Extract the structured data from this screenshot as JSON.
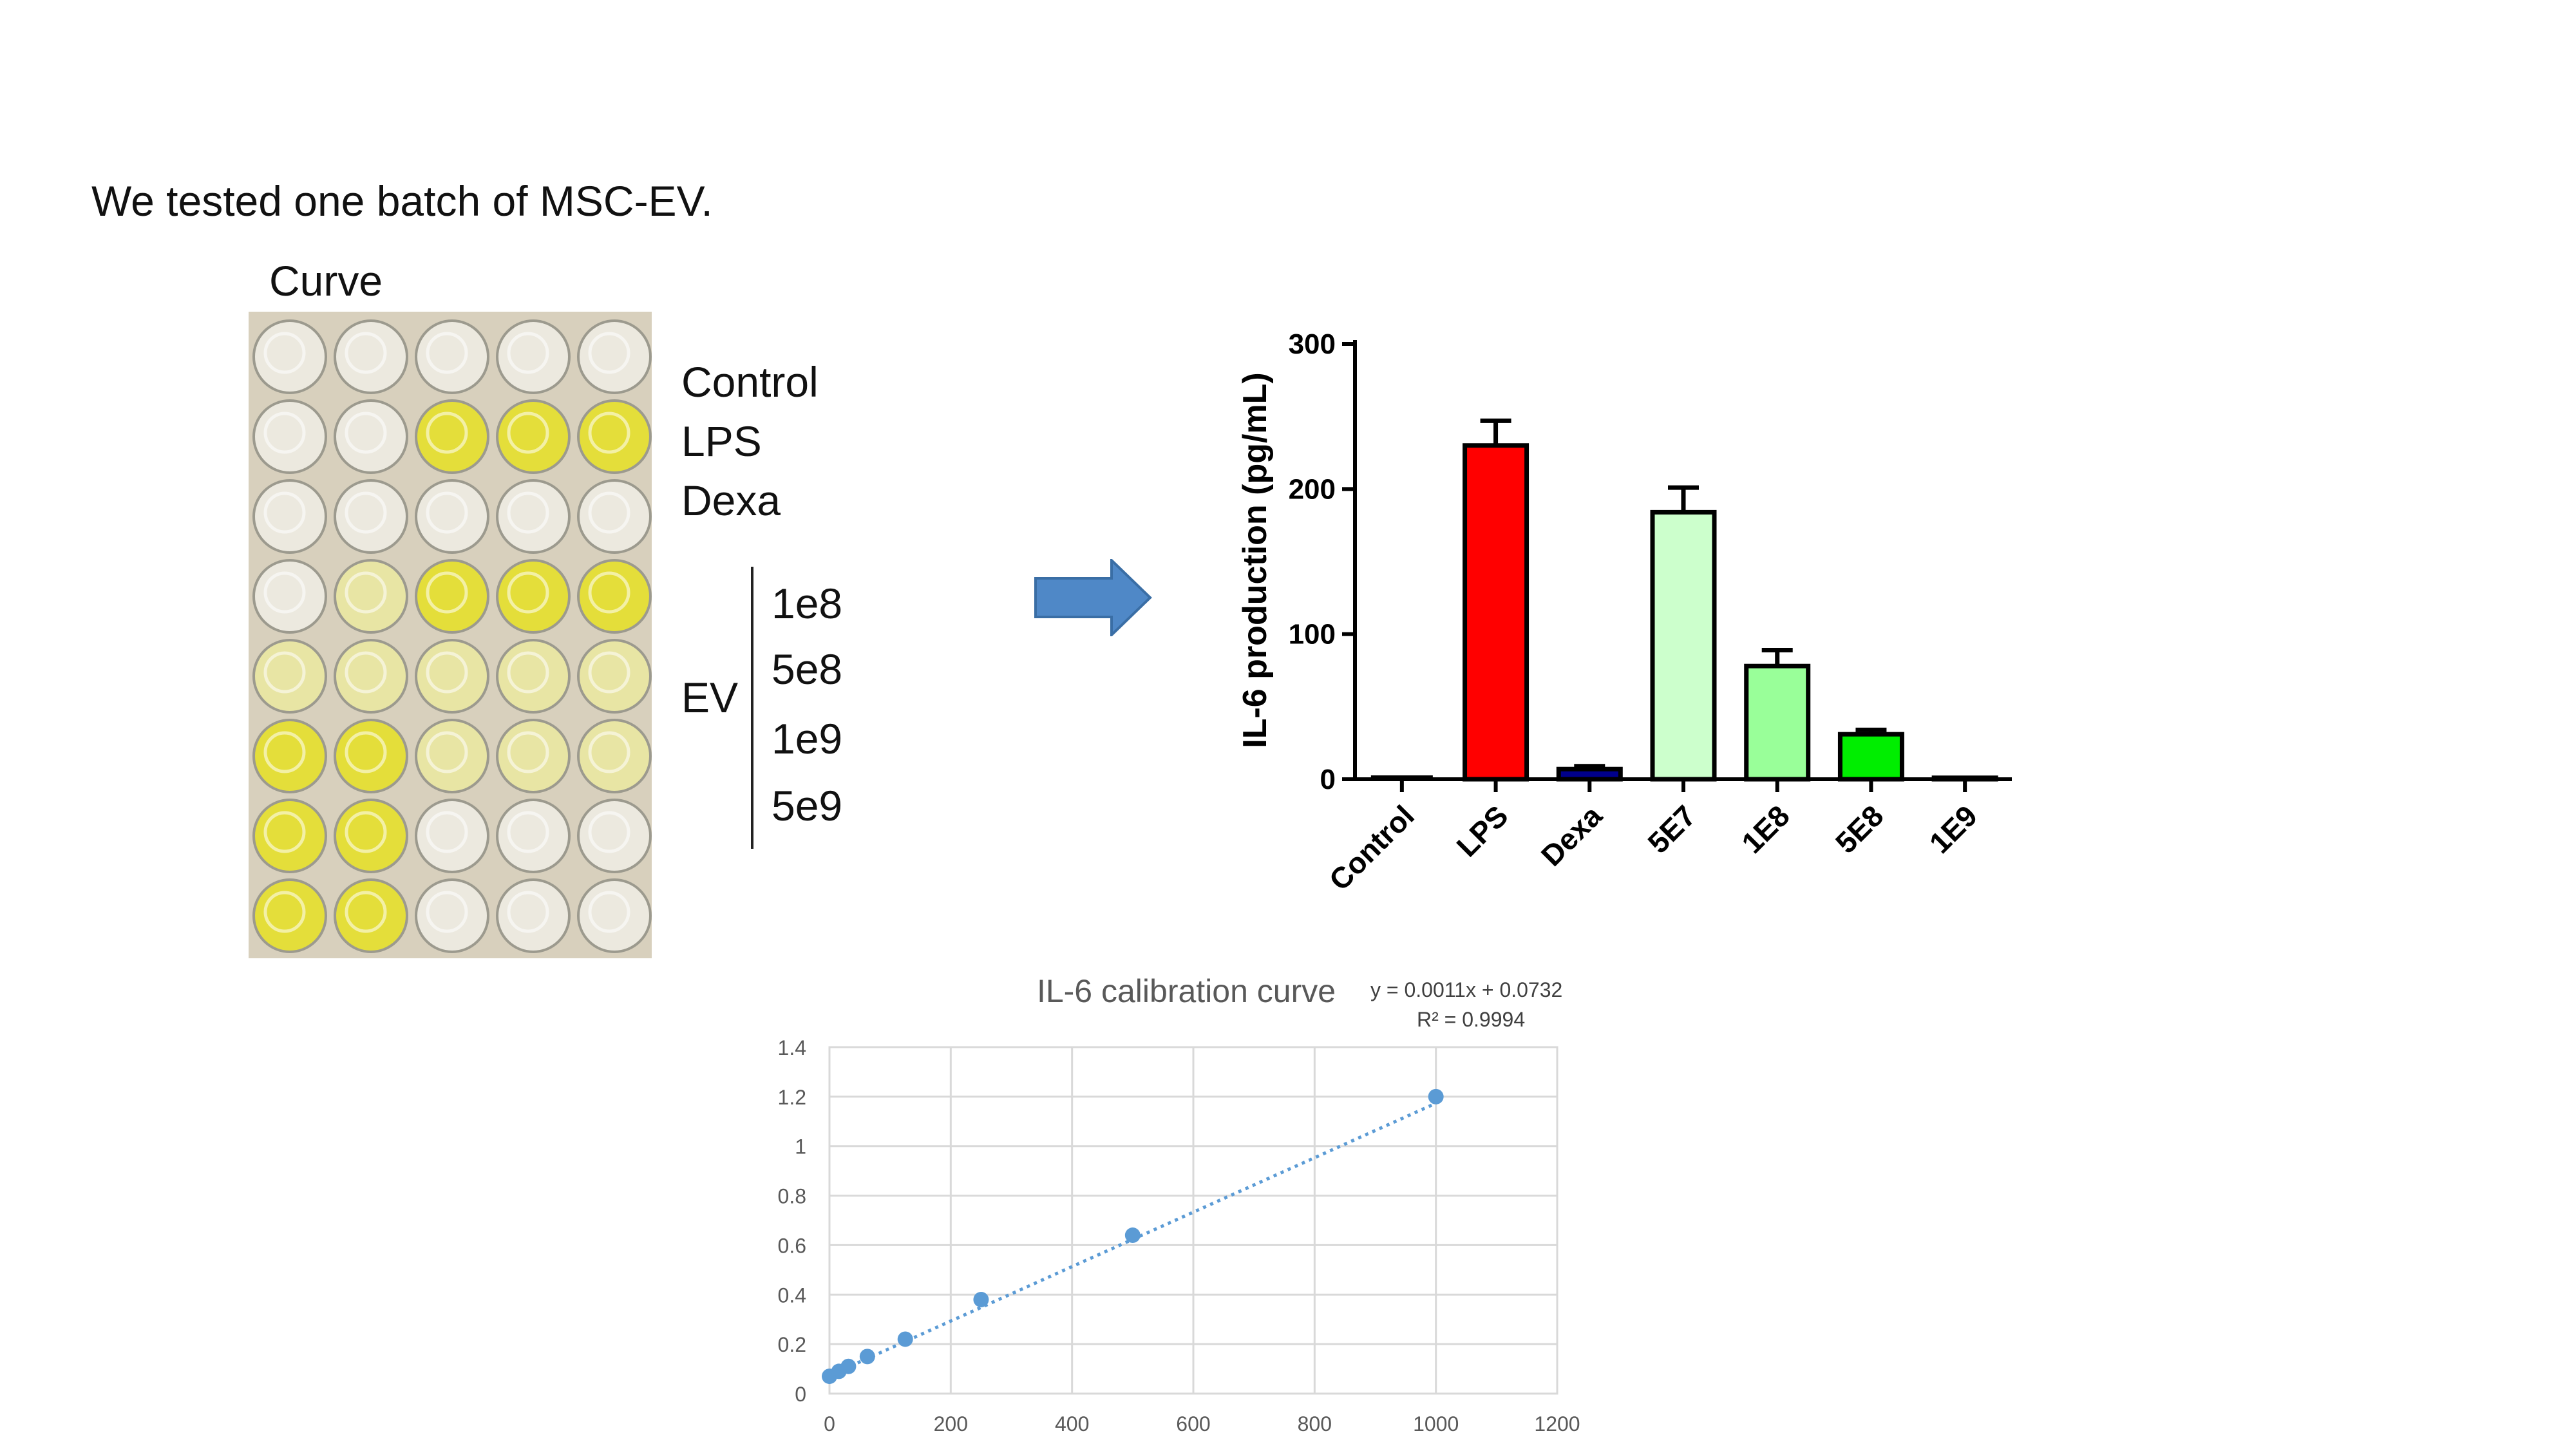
{
  "slide": {
    "title": "We tested one batch of MSC-EV.",
    "curve_label": "Curve"
  },
  "plate_labels": {
    "control": "Control",
    "lps": "LPS",
    "dexa": "Dexa",
    "ev": "EV",
    "doses": [
      "1e8",
      "5e8",
      "1e9",
      "5e9"
    ]
  },
  "plate_wells": [
    [
      "clear",
      "clear",
      "clear",
      "clear",
      "clear"
    ],
    [
      "clear",
      "clear",
      "yellow",
      "yellow",
      "yellow"
    ],
    [
      "clear",
      "clear",
      "clear",
      "clear",
      "clear"
    ],
    [
      "clear",
      "light",
      "yellow",
      "yellow",
      "yellow"
    ],
    [
      "light",
      "light",
      "light",
      "light",
      "light"
    ],
    [
      "yellow",
      "yellow",
      "light",
      "light",
      "light"
    ],
    [
      "yellow",
      "yellow",
      "clear",
      "clear",
      "clear"
    ],
    [
      "yellow",
      "yellow",
      "clear",
      "clear",
      "clear"
    ]
  ],
  "colors": {
    "well_clear": "#ece9df",
    "well_light": "#e8e5a4",
    "well_yellow": "#e4de3a",
    "plate_bg": "#d8d0bd",
    "arrow_fill": "#4f88c7",
    "arrow_stroke": "#3a6ea5",
    "curve_point": "#5b9bd5",
    "gridline": "#d9d9d9"
  },
  "chart_data": [
    {
      "type": "bar",
      "ylabel": "IL-6 production (pg/mL)",
      "categories": [
        "Control",
        "LPS",
        "Dexa",
        "5E7",
        "1E8",
        "5E8",
        "1E9"
      ],
      "values": [
        0,
        230,
        7,
        184,
        78,
        31,
        1
      ],
      "errors": [
        0,
        17,
        2,
        17,
        11,
        3,
        0
      ],
      "colors": [
        "#ffffff",
        "#ff0000",
        "#00008b",
        "#ccffcc",
        "#99ff99",
        "#00ee00",
        "#ffffff"
      ],
      "yticks": [
        "0",
        "100",
        "200",
        "300"
      ],
      "ylim": [
        0,
        300
      ]
    },
    {
      "type": "scatter",
      "title": "IL-6 calibration curve",
      "equation": "y = 0.0011x + 0.0732",
      "r2": "R² = 0.9994",
      "x": [
        0,
        15.6,
        31.25,
        62.5,
        125,
        250,
        500,
        1000
      ],
      "y": [
        0.07,
        0.09,
        0.11,
        0.15,
        0.22,
        0.38,
        0.64,
        1.2
      ],
      "xticks": [
        "0",
        "200",
        "400",
        "600",
        "800",
        "1000",
        "1200"
      ],
      "yticks": [
        "0",
        "0.2",
        "0.4",
        "0.6",
        "0.8",
        "1",
        "1.2",
        "1.4"
      ],
      "xlim": [
        0,
        1200
      ],
      "ylim": [
        0,
        1.4
      ],
      "trendline": {
        "slope": 0.0011,
        "intercept": 0.0732
      }
    }
  ]
}
